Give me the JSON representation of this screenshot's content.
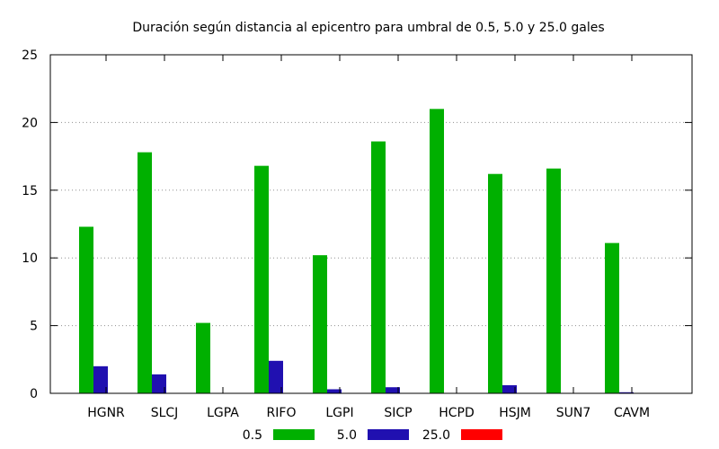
{
  "chart_data": {
    "type": "bar",
    "title": "Duración según distancia al epicentro para umbral de 0.5, 5.0 y 25.0 gales",
    "xlabel": "",
    "ylabel": "",
    "ylim": [
      0,
      25
    ],
    "yticks": [
      0,
      5,
      10,
      15,
      20,
      25
    ],
    "grid": "horizontal dotted",
    "legend_position": "bottom",
    "categories": [
      "HGNR",
      "SLCJ",
      "LGPA",
      "RIFO",
      "LGPI",
      "SICP",
      "HCPD",
      "HSJM",
      "SUN7",
      "CAVM"
    ],
    "series": [
      {
        "name": "0.5",
        "color": "#00b000",
        "values": [
          12.3,
          17.8,
          5.2,
          16.8,
          10.2,
          18.6,
          21.0,
          16.2,
          16.6,
          11.1
        ]
      },
      {
        "name": "5.0",
        "color": "#2010b0",
        "values": [
          2.0,
          1.4,
          0,
          2.4,
          0.3,
          0.45,
          0,
          0.6,
          0,
          0.08
        ]
      },
      {
        "name": "25.0",
        "color": "#ff0000",
        "values": [
          0,
          0,
          0,
          0,
          0,
          0,
          0,
          0,
          0,
          0
        ]
      }
    ]
  }
}
